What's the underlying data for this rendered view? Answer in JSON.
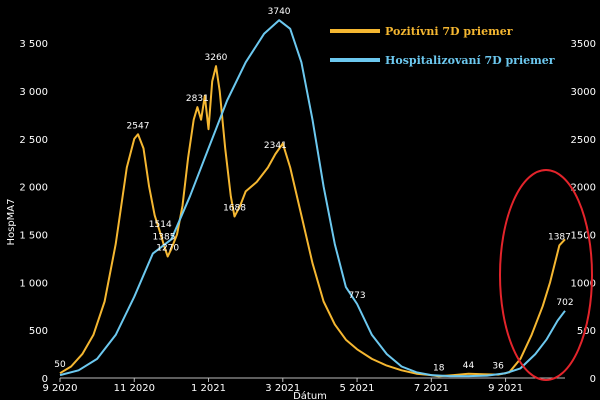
{
  "chart_data": {
    "type": "line",
    "xlabel": "Dátum",
    "ylabel": "HospMA7",
    "x_ticks": [
      "9 2020",
      "11 2020",
      "1 2021",
      "3 2021",
      "5 2021",
      "7 2021",
      "9 2021"
    ],
    "x_tick_index": [
      0,
      2,
      4,
      6,
      8,
      10,
      12
    ],
    "x_range": [
      0,
      13.6
    ],
    "y_left_ticks": [
      "0",
      "500",
      "1 000",
      "1 500",
      "2 000",
      "2 500",
      "3 000",
      "3 500"
    ],
    "y_left_range": [
      0,
      3700
    ],
    "y_right_ticks": [
      "0",
      "500",
      "1000",
      "1500",
      "2000",
      "2500",
      "3000",
      "3500"
    ],
    "series": [
      {
        "name": "Pozitívni 7D priemer",
        "axis": "left",
        "color": "#f5b731",
        "points": [
          [
            0.0,
            50
          ],
          [
            0.3,
            120
          ],
          [
            0.6,
            250
          ],
          [
            0.9,
            450
          ],
          [
            1.2,
            800
          ],
          [
            1.5,
            1400
          ],
          [
            1.8,
            2200
          ],
          [
            2.0,
            2500
          ],
          [
            2.1,
            2547
          ],
          [
            2.25,
            2400
          ],
          [
            2.4,
            2000
          ],
          [
            2.55,
            1700
          ],
          [
            2.7,
            1514
          ],
          [
            2.8,
            1385
          ],
          [
            2.9,
            1270
          ],
          [
            3.0,
            1350
          ],
          [
            3.15,
            1500
          ],
          [
            3.3,
            1800
          ],
          [
            3.45,
            2300
          ],
          [
            3.6,
            2700
          ],
          [
            3.7,
            2831
          ],
          [
            3.8,
            2700
          ],
          [
            3.9,
            2950
          ],
          [
            4.0,
            2600
          ],
          [
            4.1,
            3100
          ],
          [
            4.2,
            3260
          ],
          [
            4.3,
            3000
          ],
          [
            4.45,
            2400
          ],
          [
            4.6,
            1900
          ],
          [
            4.7,
            1688
          ],
          [
            4.85,
            1800
          ],
          [
            5.0,
            1950
          ],
          [
            5.3,
            2050
          ],
          [
            5.6,
            2200
          ],
          [
            5.8,
            2341
          ],
          [
            6.0,
            2450
          ],
          [
            6.2,
            2200
          ],
          [
            6.5,
            1700
          ],
          [
            6.8,
            1200
          ],
          [
            7.1,
            800
          ],
          [
            7.4,
            560
          ],
          [
            7.7,
            400
          ],
          [
            8.0,
            300
          ],
          [
            8.4,
            200
          ],
          [
            8.8,
            130
          ],
          [
            9.2,
            80
          ],
          [
            9.6,
            45
          ],
          [
            10.0,
            30
          ],
          [
            10.2,
            18
          ],
          [
            10.6,
            30
          ],
          [
            11.0,
            44
          ],
          [
            11.4,
            40
          ],
          [
            11.8,
            36
          ],
          [
            12.1,
            60
          ],
          [
            12.4,
            200
          ],
          [
            12.7,
            450
          ],
          [
            13.0,
            750
          ],
          [
            13.2,
            1000
          ],
          [
            13.45,
            1387
          ],
          [
            13.6,
            1450
          ]
        ],
        "labels": [
          {
            "x": 2.1,
            "y": 2547,
            "text": "2547"
          },
          {
            "x": 2.7,
            "y": 1514,
            "text": "1514"
          },
          {
            "x": 2.8,
            "y": 1385,
            "text": "1385"
          },
          {
            "x": 2.9,
            "y": 1270,
            "text": "1270"
          },
          {
            "x": 3.7,
            "y": 2831,
            "text": "2831"
          },
          {
            "x": 4.2,
            "y": 3260,
            "text": "3260"
          },
          {
            "x": 4.7,
            "y": 1688,
            "text": "1688"
          },
          {
            "x": 5.8,
            "y": 2341,
            "text": "2341"
          },
          {
            "x": 0.0,
            "y": 50,
            "text": "50"
          },
          {
            "x": 10.2,
            "y": 18,
            "text": "18"
          },
          {
            "x": 11.0,
            "y": 44,
            "text": "44"
          },
          {
            "x": 11.8,
            "y": 36,
            "text": "36"
          },
          {
            "x": 13.45,
            "y": 1387,
            "text": "1387"
          }
        ]
      },
      {
        "name": "Hospitalizovaní 7D priemer",
        "axis": "left",
        "color": "#6cc8ef",
        "points": [
          [
            0.0,
            30
          ],
          [
            0.5,
            80
          ],
          [
            1.0,
            200
          ],
          [
            1.5,
            450
          ],
          [
            2.0,
            850
          ],
          [
            2.5,
            1300
          ],
          [
            3.0,
            1450
          ],
          [
            3.5,
            1900
          ],
          [
            4.0,
            2400
          ],
          [
            4.5,
            2900
          ],
          [
            5.0,
            3300
          ],
          [
            5.5,
            3600
          ],
          [
            5.9,
            3740
          ],
          [
            6.2,
            3650
          ],
          [
            6.5,
            3300
          ],
          [
            6.8,
            2700
          ],
          [
            7.1,
            2000
          ],
          [
            7.4,
            1400
          ],
          [
            7.7,
            950
          ],
          [
            8.0,
            773
          ],
          [
            8.4,
            450
          ],
          [
            8.8,
            250
          ],
          [
            9.2,
            120
          ],
          [
            9.6,
            60
          ],
          [
            10.0,
            30
          ],
          [
            10.5,
            20
          ],
          [
            11.0,
            20
          ],
          [
            11.5,
            25
          ],
          [
            12.0,
            50
          ],
          [
            12.4,
            100
          ],
          [
            12.8,
            250
          ],
          [
            13.1,
            400
          ],
          [
            13.4,
            600
          ],
          [
            13.6,
            702
          ]
        ],
        "labels": [
          {
            "x": 5.9,
            "y": 3740,
            "text": "3740"
          },
          {
            "x": 8.0,
            "y": 773,
            "text": "773"
          },
          {
            "x": 13.6,
            "y": 702,
            "text": "702"
          }
        ]
      }
    ],
    "legend_placement": "top-right",
    "annotation_circle_color": "#e3242b",
    "grid": false
  }
}
